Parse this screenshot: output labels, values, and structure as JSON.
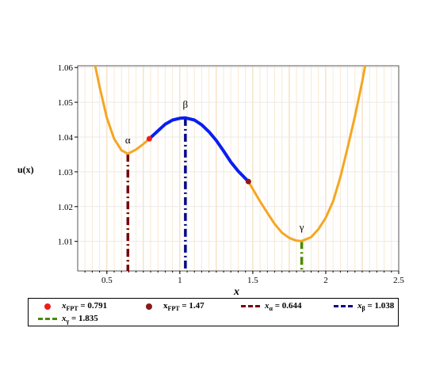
{
  "chart_data": {
    "type": "line",
    "ylabel": "u(x)",
    "xlabel": "x",
    "xlim": [
      0.3,
      2.5
    ],
    "ylim": [
      1.0015,
      1.0605
    ],
    "x_ticks": [
      "0.5",
      "1",
      "1.5",
      "2",
      "2.5"
    ],
    "x_tick_values": [
      0.5,
      1,
      1.5,
      2,
      2.5
    ],
    "y_ticks": [
      "1.01",
      "1.02",
      "1.03",
      "1.04",
      "1.05",
      "1.06"
    ],
    "y_tick_values": [
      1.01,
      1.02,
      1.03,
      1.04,
      1.05,
      1.06
    ],
    "grid": true,
    "curve": {
      "x": [
        0.42,
        0.45,
        0.5,
        0.55,
        0.6,
        0.644,
        0.7,
        0.75,
        0.791,
        0.85,
        0.9,
        0.95,
        1.0,
        1.038,
        1.1,
        1.15,
        1.2,
        1.25,
        1.3,
        1.35,
        1.4,
        1.47,
        1.55,
        1.6,
        1.65,
        1.7,
        1.75,
        1.8,
        1.835,
        1.9,
        1.95,
        2.0,
        2.05,
        2.1,
        2.15,
        2.2,
        2.25,
        2.27
      ],
      "y": [
        1.0605,
        1.0545,
        1.0455,
        1.0395,
        1.0362,
        1.0352,
        1.0364,
        1.038,
        1.0395,
        1.0418,
        1.0437,
        1.0449,
        1.0454,
        1.0455,
        1.0449,
        1.0435,
        1.0415,
        1.039,
        1.036,
        1.0328,
        1.0302,
        1.0272,
        1.0215,
        1.0182,
        1.015,
        1.0125,
        1.011,
        1.0102,
        1.0101,
        1.0112,
        1.0135,
        1.0168,
        1.0215,
        1.0285,
        1.037,
        1.046,
        1.056,
        1.0605
      ]
    },
    "highlight_segment": {
      "x_from": 0.791,
      "x_to": 1.47,
      "color": "#0a1ef0"
    },
    "base_color": "#f5a623",
    "points": [
      {
        "label": "α",
        "x": 0.644,
        "y": 1.0352
      },
      {
        "label": "β",
        "x": 1.038,
        "y": 1.0455
      },
      {
        "label": "γ",
        "x": 1.835,
        "y": 1.0101
      }
    ],
    "markers": [
      {
        "x": 0.791,
        "y": 1.0395,
        "color": "#ef1c1c"
      },
      {
        "x": 1.47,
        "y": 1.0272,
        "color": "#8b1a1a"
      }
    ],
    "vlines": [
      {
        "x": 0.644,
        "y": 1.0352,
        "color": "#7a0000"
      },
      {
        "x": 1.038,
        "y": 1.0455,
        "color": "#000a85"
      },
      {
        "x": 1.835,
        "y": 1.0101,
        "color": "#4a8a00"
      }
    ],
    "legend": [
      {
        "sym": "dot",
        "color": "#ef1c1c",
        "label": "x_FPT = 0.791",
        "var": "x",
        "sub": "FPT",
        "value": " = 0.791",
        "italic": true
      },
      {
        "sym": "dot",
        "color": "#8b1a1a",
        "label": "x_FPT = 1.47",
        "var": "x",
        "sub": "FPT",
        "value": " = 1.47",
        "italic": false
      },
      {
        "sym": "dash",
        "color": "#7a0000",
        "label": "x_α = 0.644",
        "var": "x",
        "sub": "α",
        "value": " = 0.644",
        "italic": true
      },
      {
        "sym": "dash",
        "color": "#000a85",
        "label": "x_β = 1.038",
        "var": "x",
        "sub": "β",
        "value": " = 1.038",
        "italic": true
      },
      {
        "sym": "dash",
        "color": "#4a8a00",
        "label": "x_γ = 1.835",
        "var": "x",
        "sub": "γ",
        "value": " = 1.835",
        "italic": true
      }
    ]
  }
}
